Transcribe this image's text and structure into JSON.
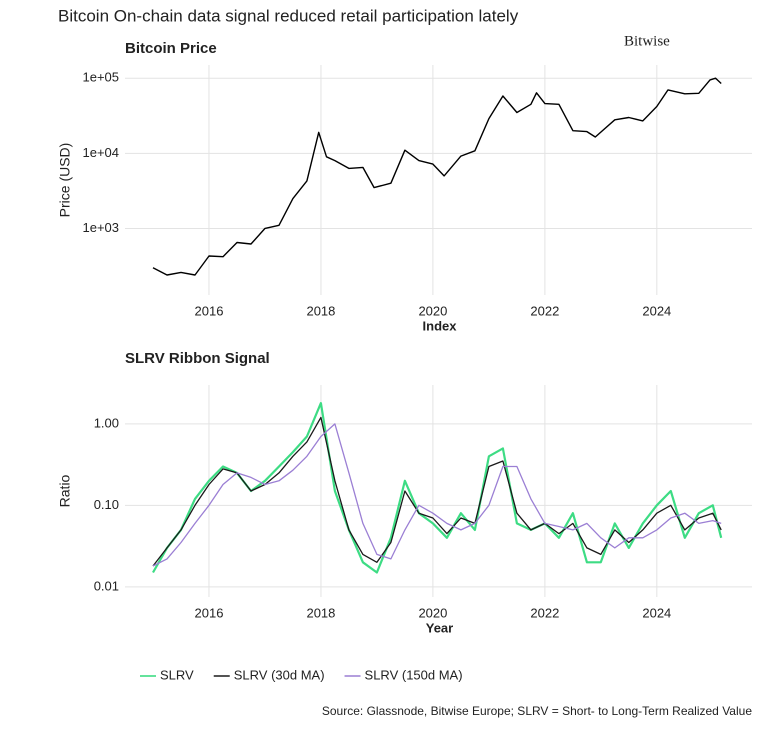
{
  "title": "Bitcoin On-chain data signal reduced retail participation lately",
  "logo": "Bitwise",
  "source": "Source: Glassnode, Bitwise Europe; SLRV = Short- to Long-Term Realized Value",
  "chart_data": [
    {
      "type": "line",
      "title": "Bitcoin Price",
      "x_label": "Index",
      "y_label": "Price (USD)",
      "log_scale": true,
      "grid": true,
      "color": "#000000",
      "xlim": [
        2014.5,
        2025.7
      ],
      "xticks": [
        2016,
        2018,
        2020,
        2022,
        2024
      ],
      "ylim": [
        130,
        150000
      ],
      "yticks": [
        {
          "value": 1000,
          "label": "1e+03"
        },
        {
          "value": 10000,
          "label": "1e+04"
        },
        {
          "value": 100000,
          "label": "1e+05"
        }
      ],
      "x": [
        2015.0,
        2015.25,
        2015.5,
        2015.75,
        2016.0,
        2016.25,
        2016.5,
        2016.75,
        2017.0,
        2017.25,
        2017.5,
        2017.75,
        2017.96,
        2018.1,
        2018.25,
        2018.5,
        2018.75,
        2018.95,
        2019.25,
        2019.5,
        2019.75,
        2020.0,
        2020.2,
        2020.5,
        2020.75,
        2021.0,
        2021.25,
        2021.5,
        2021.75,
        2021.85,
        2022.0,
        2022.25,
        2022.5,
        2022.75,
        2022.9,
        2023.25,
        2023.5,
        2023.75,
        2024.0,
        2024.2,
        2024.5,
        2024.75,
        2024.95,
        2025.05,
        2025.15
      ],
      "values": [
        300,
        240,
        260,
        240,
        430,
        420,
        650,
        620,
        1000,
        1100,
        2500,
        4300,
        19000,
        9000,
        8000,
        6300,
        6500,
        3500,
        4000,
        11000,
        8000,
        7200,
        5000,
        9200,
        10800,
        29000,
        58000,
        35000,
        45000,
        64000,
        46000,
        45000,
        20000,
        19500,
        16500,
        28000,
        30000,
        27000,
        42000,
        70000,
        62000,
        63000,
        95000,
        100000,
        85000
      ]
    },
    {
      "type": "line",
      "title": "SLRV Ribbon Signal",
      "x_label": "Year",
      "y_label": "Ratio",
      "log_scale": true,
      "grid": true,
      "legend": "bottom-left",
      "xlim": [
        2014.5,
        2025.7
      ],
      "xticks": [
        2016,
        2018,
        2020,
        2022,
        2024
      ],
      "ylim": [
        0.0075,
        3
      ],
      "yticks": [
        {
          "value": 0.01,
          "label": "0.01"
        },
        {
          "value": 0.1,
          "label": "0.10"
        },
        {
          "value": 1,
          "label": "1.00"
        }
      ],
      "x": [
        2015.0,
        2015.25,
        2015.5,
        2015.75,
        2016.0,
        2016.25,
        2016.5,
        2016.75,
        2017.0,
        2017.25,
        2017.5,
        2017.75,
        2018.0,
        2018.25,
        2018.5,
        2018.75,
        2019.0,
        2019.25,
        2019.5,
        2019.75,
        2020.0,
        2020.25,
        2020.5,
        2020.75,
        2021.0,
        2021.25,
        2021.5,
        2021.75,
        2022.0,
        2022.25,
        2022.5,
        2022.75,
        2023.0,
        2023.25,
        2023.5,
        2023.75,
        2024.0,
        2024.25,
        2024.5,
        2024.75,
        2025.0,
        2025.15
      ],
      "series": [
        {
          "name": "SLRV",
          "color": "#3ddc84",
          "width": 2.2,
          "values": [
            0.015,
            0.03,
            0.05,
            0.12,
            0.2,
            0.3,
            0.25,
            0.15,
            0.2,
            0.3,
            0.45,
            0.7,
            1.8,
            0.15,
            0.05,
            0.02,
            0.015,
            0.04,
            0.2,
            0.08,
            0.06,
            0.04,
            0.08,
            0.05,
            0.4,
            0.5,
            0.06,
            0.05,
            0.06,
            0.04,
            0.08,
            0.02,
            0.02,
            0.06,
            0.03,
            0.06,
            0.1,
            0.15,
            0.04,
            0.08,
            0.1,
            0.04
          ]
        },
        {
          "name": "SLRV (30d MA)",
          "color": "#1a1a1a",
          "width": 1.3,
          "values": [
            0.018,
            0.03,
            0.05,
            0.1,
            0.18,
            0.28,
            0.25,
            0.15,
            0.18,
            0.25,
            0.4,
            0.6,
            1.2,
            0.2,
            0.05,
            0.025,
            0.02,
            0.035,
            0.15,
            0.08,
            0.07,
            0.045,
            0.07,
            0.06,
            0.3,
            0.35,
            0.08,
            0.05,
            0.06,
            0.045,
            0.06,
            0.03,
            0.025,
            0.05,
            0.035,
            0.05,
            0.08,
            0.1,
            0.05,
            0.07,
            0.08,
            0.05
          ]
        },
        {
          "name": "SLRV (150d MA)",
          "color": "#9b7fd4",
          "width": 1.3,
          "values": [
            0.018,
            0.022,
            0.035,
            0.06,
            0.1,
            0.18,
            0.25,
            0.22,
            0.18,
            0.2,
            0.27,
            0.4,
            0.7,
            1.0,
            0.25,
            0.06,
            0.025,
            0.022,
            0.05,
            0.1,
            0.08,
            0.06,
            0.05,
            0.06,
            0.1,
            0.3,
            0.3,
            0.12,
            0.06,
            0.055,
            0.05,
            0.06,
            0.04,
            0.03,
            0.04,
            0.04,
            0.05,
            0.07,
            0.08,
            0.06,
            0.065,
            0.06
          ]
        }
      ]
    }
  ]
}
